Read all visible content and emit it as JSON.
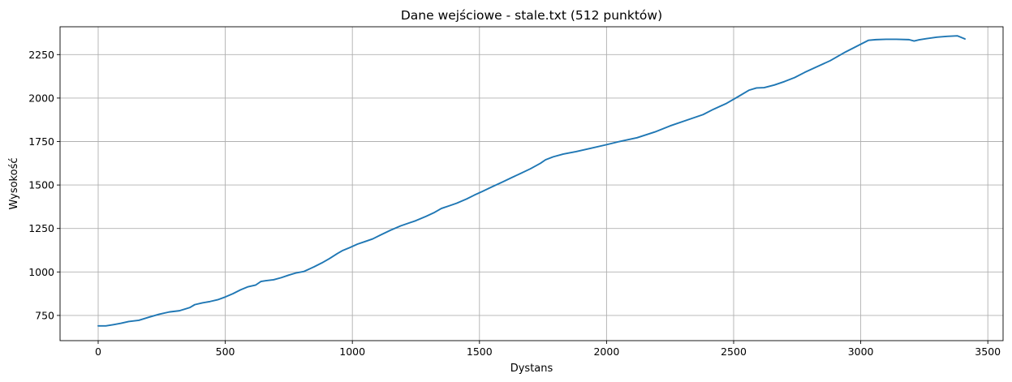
{
  "chart_data": {
    "type": "line",
    "title": "Dane wejściowe - stale.txt (512 punktów)",
    "xlabel": "Dystans",
    "ylabel": "Wysokość",
    "xlim": [
      -150,
      3560
    ],
    "ylim": [
      605,
      2410
    ],
    "xticks": [
      0,
      500,
      1000,
      1500,
      2000,
      2500,
      3000,
      3500
    ],
    "yticks": [
      750,
      1000,
      1250,
      1500,
      1750,
      2000,
      2250
    ],
    "grid": true,
    "series": [
      {
        "color": "#1f77b4",
        "x": [
          0,
          30,
          60,
          90,
          120,
          160,
          200,
          240,
          280,
          320,
          360,
          380,
          410,
          440,
          470,
          500,
          530,
          560,
          590,
          620,
          640,
          660,
          690,
          720,
          750,
          780,
          810,
          850,
          880,
          910,
          940,
          960,
          990,
          1020,
          1050,
          1080,
          1110,
          1150,
          1190,
          1220,
          1250,
          1290,
          1320,
          1350,
          1380,
          1410,
          1450,
          1480,
          1510,
          1550,
          1590,
          1630,
          1660,
          1700,
          1740,
          1760,
          1790,
          1830,
          1880,
          1940,
          2000,
          2050,
          2120,
          2190,
          2250,
          2330,
          2380,
          2420,
          2470,
          2520,
          2560,
          2590,
          2620,
          2660,
          2700,
          2740,
          2780,
          2820,
          2880,
          2940,
          2990,
          3030,
          3060,
          3100,
          3140,
          3190,
          3210,
          3230,
          3260,
          3300,
          3340,
          3380,
          3410
        ],
        "y": [
          690,
          690,
          697,
          705,
          715,
          722,
          740,
          757,
          770,
          777,
          795,
          812,
          822,
          830,
          840,
          856,
          875,
          897,
          915,
          925,
          945,
          950,
          955,
          967,
          982,
          995,
          1003,
          1030,
          1052,
          1077,
          1105,
          1122,
          1140,
          1160,
          1175,
          1190,
          1212,
          1240,
          1265,
          1280,
          1295,
          1320,
          1340,
          1365,
          1380,
          1395,
          1420,
          1442,
          1462,
          1490,
          1517,
          1545,
          1565,
          1593,
          1625,
          1645,
          1662,
          1678,
          1692,
          1712,
          1732,
          1750,
          1772,
          1805,
          1840,
          1880,
          1905,
          1935,
          1968,
          2010,
          2045,
          2058,
          2060,
          2075,
          2095,
          2118,
          2148,
          2175,
          2215,
          2265,
          2302,
          2332,
          2336,
          2338,
          2338,
          2336,
          2328,
          2335,
          2342,
          2350,
          2355,
          2358,
          2340
        ]
      }
    ]
  }
}
